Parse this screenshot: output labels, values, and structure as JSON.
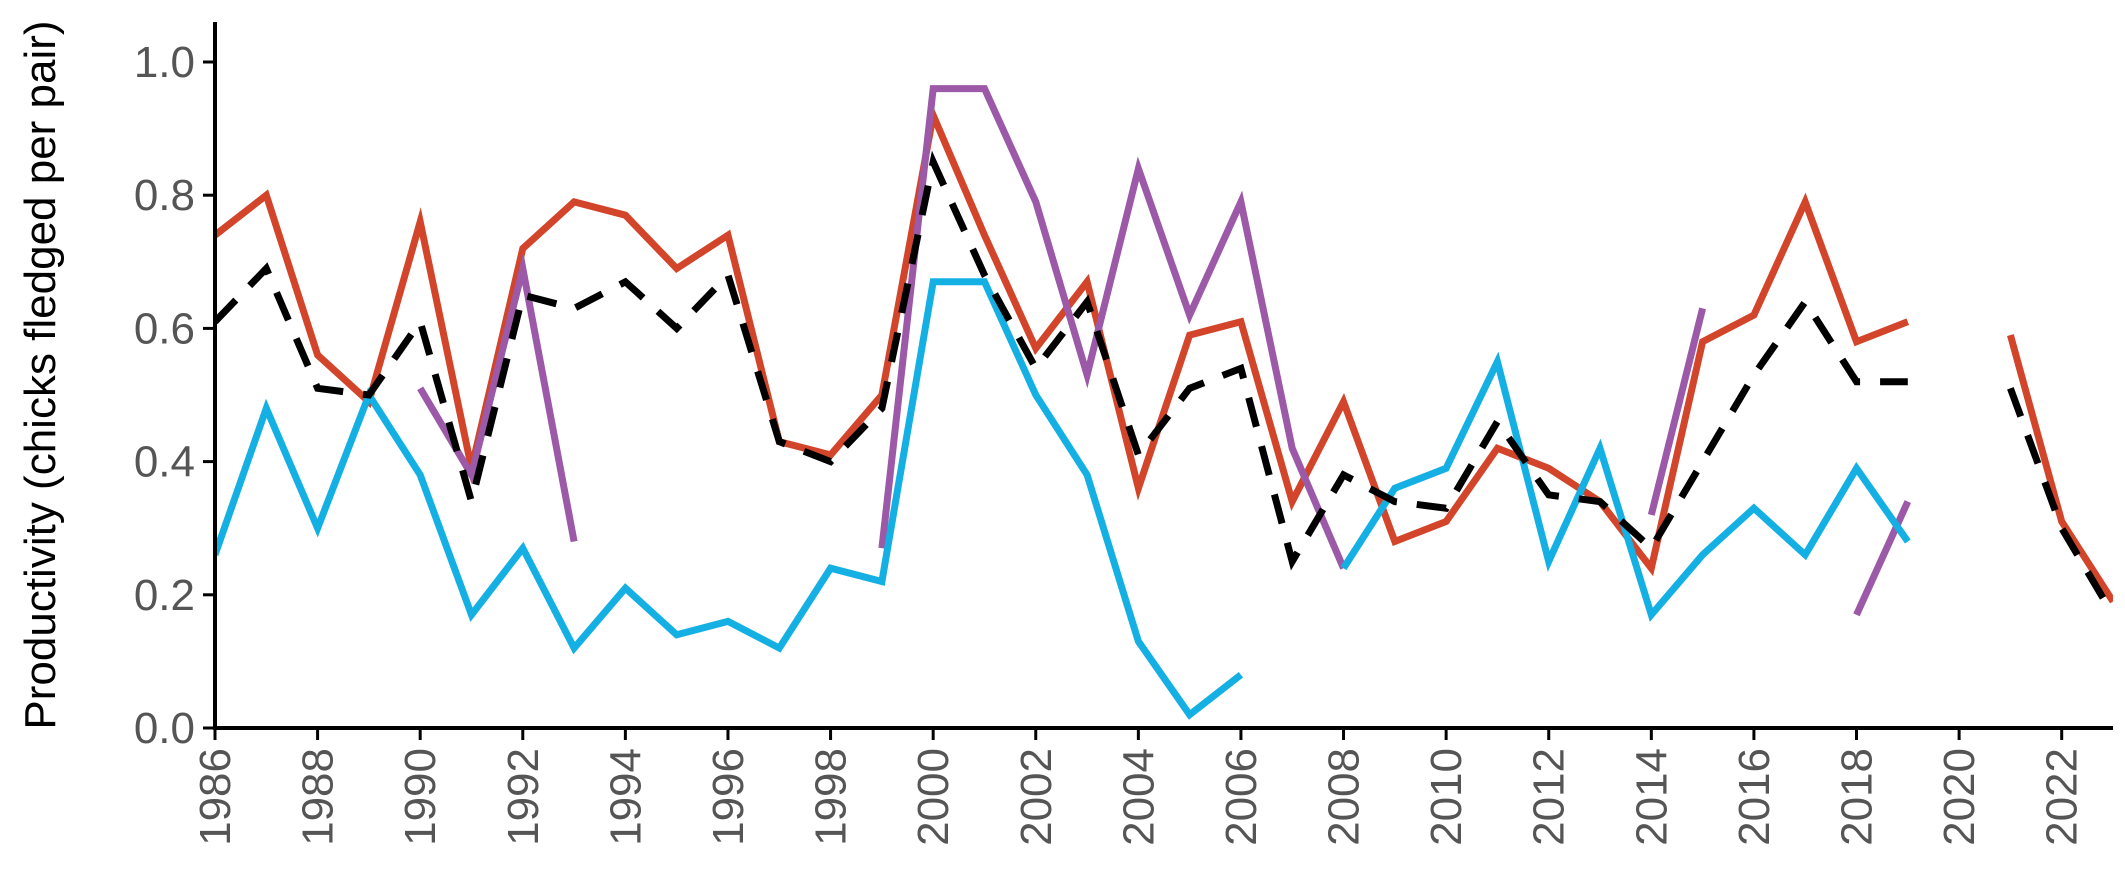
{
  "chart_data": {
    "type": "line",
    "title": "",
    "xlabel": "",
    "ylabel": "Productivity (chicks fledged per pair)",
    "xlim": [
      1986,
      2023
    ],
    "ylim": [
      0,
      1.0
    ],
    "x_ticks": [
      1986,
      1988,
      1990,
      1992,
      1994,
      1996,
      1998,
      2000,
      2002,
      2004,
      2006,
      2008,
      2010,
      2012,
      2014,
      2016,
      2018,
      2020,
      2022
    ],
    "x_tick_labels": [
      "1986",
      "1988",
      "1990",
      "1992",
      "1994",
      "1996",
      "1998",
      "2000",
      "2002",
      "2004",
      "2006",
      "2008",
      "2010",
      "2012",
      "2014",
      "2016",
      "2018",
      "2020",
      "2022"
    ],
    "y_ticks": [
      0,
      0.2,
      0.4,
      0.6,
      0.8,
      1.0
    ],
    "y_tick_labels": [
      "0.0",
      "0.2",
      "0.4",
      "0.6",
      "0.8",
      "1.0"
    ],
    "x_tick_rotation": -90,
    "grid": false,
    "legend": "none",
    "series": [
      {
        "color": "#d2452a",
        "dashed": false,
        "points": [
          [
            1986,
            0.74
          ],
          [
            1987,
            0.8
          ],
          [
            1988,
            0.56
          ],
          [
            1989,
            0.49
          ],
          [
            1990,
            0.76
          ],
          [
            1991,
            0.39
          ],
          [
            1992,
            0.72
          ],
          [
            1993,
            0.79
          ],
          [
            1994,
            0.77
          ],
          [
            1995,
            0.69
          ],
          [
            1996,
            0.74
          ],
          [
            1997,
            0.43
          ],
          [
            1998,
            0.41
          ],
          [
            1999,
            0.5
          ],
          [
            2000,
            0.92
          ],
          [
            2001,
            0.74
          ],
          [
            2002,
            0.57
          ],
          [
            2003,
            0.67
          ],
          [
            2004,
            0.36
          ],
          [
            2005,
            0.59
          ],
          [
            2006,
            0.61
          ],
          [
            2007,
            0.34
          ],
          [
            2008,
            0.49
          ],
          [
            2009,
            0.28
          ],
          [
            2010,
            0.31
          ],
          [
            2011,
            0.42
          ],
          [
            2012,
            0.39
          ],
          [
            2013,
            0.34
          ],
          [
            2014,
            0.24
          ],
          [
            2015,
            0.58
          ],
          [
            2016,
            0.62
          ],
          [
            2017,
            0.79
          ],
          [
            2018,
            0.58
          ],
          [
            2019,
            0.61
          ],
          [
            2020,
            null
          ],
          [
            2021,
            0.59
          ],
          [
            2022,
            0.31
          ],
          [
            2023,
            0.19
          ]
        ]
      },
      {
        "color": "#9b59a8",
        "dashed": false,
        "points": [
          [
            1990,
            0.51
          ],
          [
            1991,
            0.38
          ],
          [
            1992,
            0.69
          ],
          [
            1993,
            0.28
          ],
          [
            1994,
            null
          ],
          [
            1999,
            0.27
          ],
          [
            2000,
            0.96
          ],
          [
            2001,
            0.96
          ],
          [
            2002,
            0.79
          ],
          [
            2003,
            0.53
          ],
          [
            2004,
            0.84
          ],
          [
            2005,
            0.62
          ],
          [
            2006,
            0.79
          ],
          [
            2007,
            0.42
          ],
          [
            2008,
            0.24
          ],
          [
            2009,
            null
          ],
          [
            2014,
            0.32
          ],
          [
            2015,
            0.63
          ],
          [
            2016,
            null
          ],
          [
            2018,
            0.17
          ],
          [
            2019,
            0.34
          ]
        ]
      },
      {
        "color": "#14b0e3",
        "dashed": false,
        "points": [
          [
            1986,
            0.26
          ],
          [
            1987,
            0.48
          ],
          [
            1988,
            0.3
          ],
          [
            1989,
            0.5
          ],
          [
            1990,
            0.38
          ],
          [
            1991,
            0.17
          ],
          [
            1992,
            0.27
          ],
          [
            1993,
            0.12
          ],
          [
            1994,
            0.21
          ],
          [
            1995,
            0.14
          ],
          [
            1996,
            0.16
          ],
          [
            1997,
            0.12
          ],
          [
            1998,
            0.24
          ],
          [
            1999,
            0.22
          ],
          [
            2000,
            0.67
          ],
          [
            2001,
            0.67
          ],
          [
            2002,
            0.5
          ],
          [
            2003,
            0.38
          ],
          [
            2004,
            0.13
          ],
          [
            2005,
            0.02
          ],
          [
            2006,
            0.08
          ],
          [
            2007,
            null
          ],
          [
            2008,
            0.24
          ],
          [
            2009,
            0.36
          ],
          [
            2010,
            0.39
          ],
          [
            2011,
            0.55
          ],
          [
            2012,
            0.25
          ],
          [
            2013,
            0.42
          ],
          [
            2014,
            0.17
          ],
          [
            2015,
            0.26
          ],
          [
            2016,
            0.33
          ],
          [
            2017,
            0.26
          ],
          [
            2018,
            0.39
          ],
          [
            2019,
            0.28
          ]
        ]
      },
      {
        "color": "#000000",
        "dashed": true,
        "points": [
          [
            1986,
            0.61
          ],
          [
            1987,
            0.69
          ],
          [
            1988,
            0.51
          ],
          [
            1989,
            0.5
          ],
          [
            1990,
            0.61
          ],
          [
            1991,
            0.34
          ],
          [
            1992,
            0.65
          ],
          [
            1993,
            0.63
          ],
          [
            1994,
            0.67
          ],
          [
            1995,
            0.6
          ],
          [
            1996,
            0.68
          ],
          [
            1997,
            0.43
          ],
          [
            1998,
            0.4
          ],
          [
            1999,
            0.48
          ],
          [
            2000,
            0.85
          ],
          [
            2001,
            0.68
          ],
          [
            2002,
            0.54
          ],
          [
            2003,
            0.64
          ],
          [
            2004,
            0.41
          ],
          [
            2005,
            0.51
          ],
          [
            2006,
            0.54
          ],
          [
            2007,
            0.25
          ],
          [
            2008,
            0.38
          ],
          [
            2009,
            0.34
          ],
          [
            2010,
            0.33
          ],
          [
            2011,
            0.46
          ],
          [
            2012,
            0.35
          ],
          [
            2013,
            0.34
          ],
          [
            2014,
            0.27
          ],
          [
            2015,
            0.4
          ],
          [
            2016,
            0.53
          ],
          [
            2017,
            0.64
          ],
          [
            2018,
            0.52
          ],
          [
            2019,
            0.52
          ],
          [
            2020,
            null
          ],
          [
            2021,
            0.51
          ],
          [
            2022,
            0.3
          ],
          [
            2023,
            0.17
          ]
        ]
      }
    ]
  }
}
